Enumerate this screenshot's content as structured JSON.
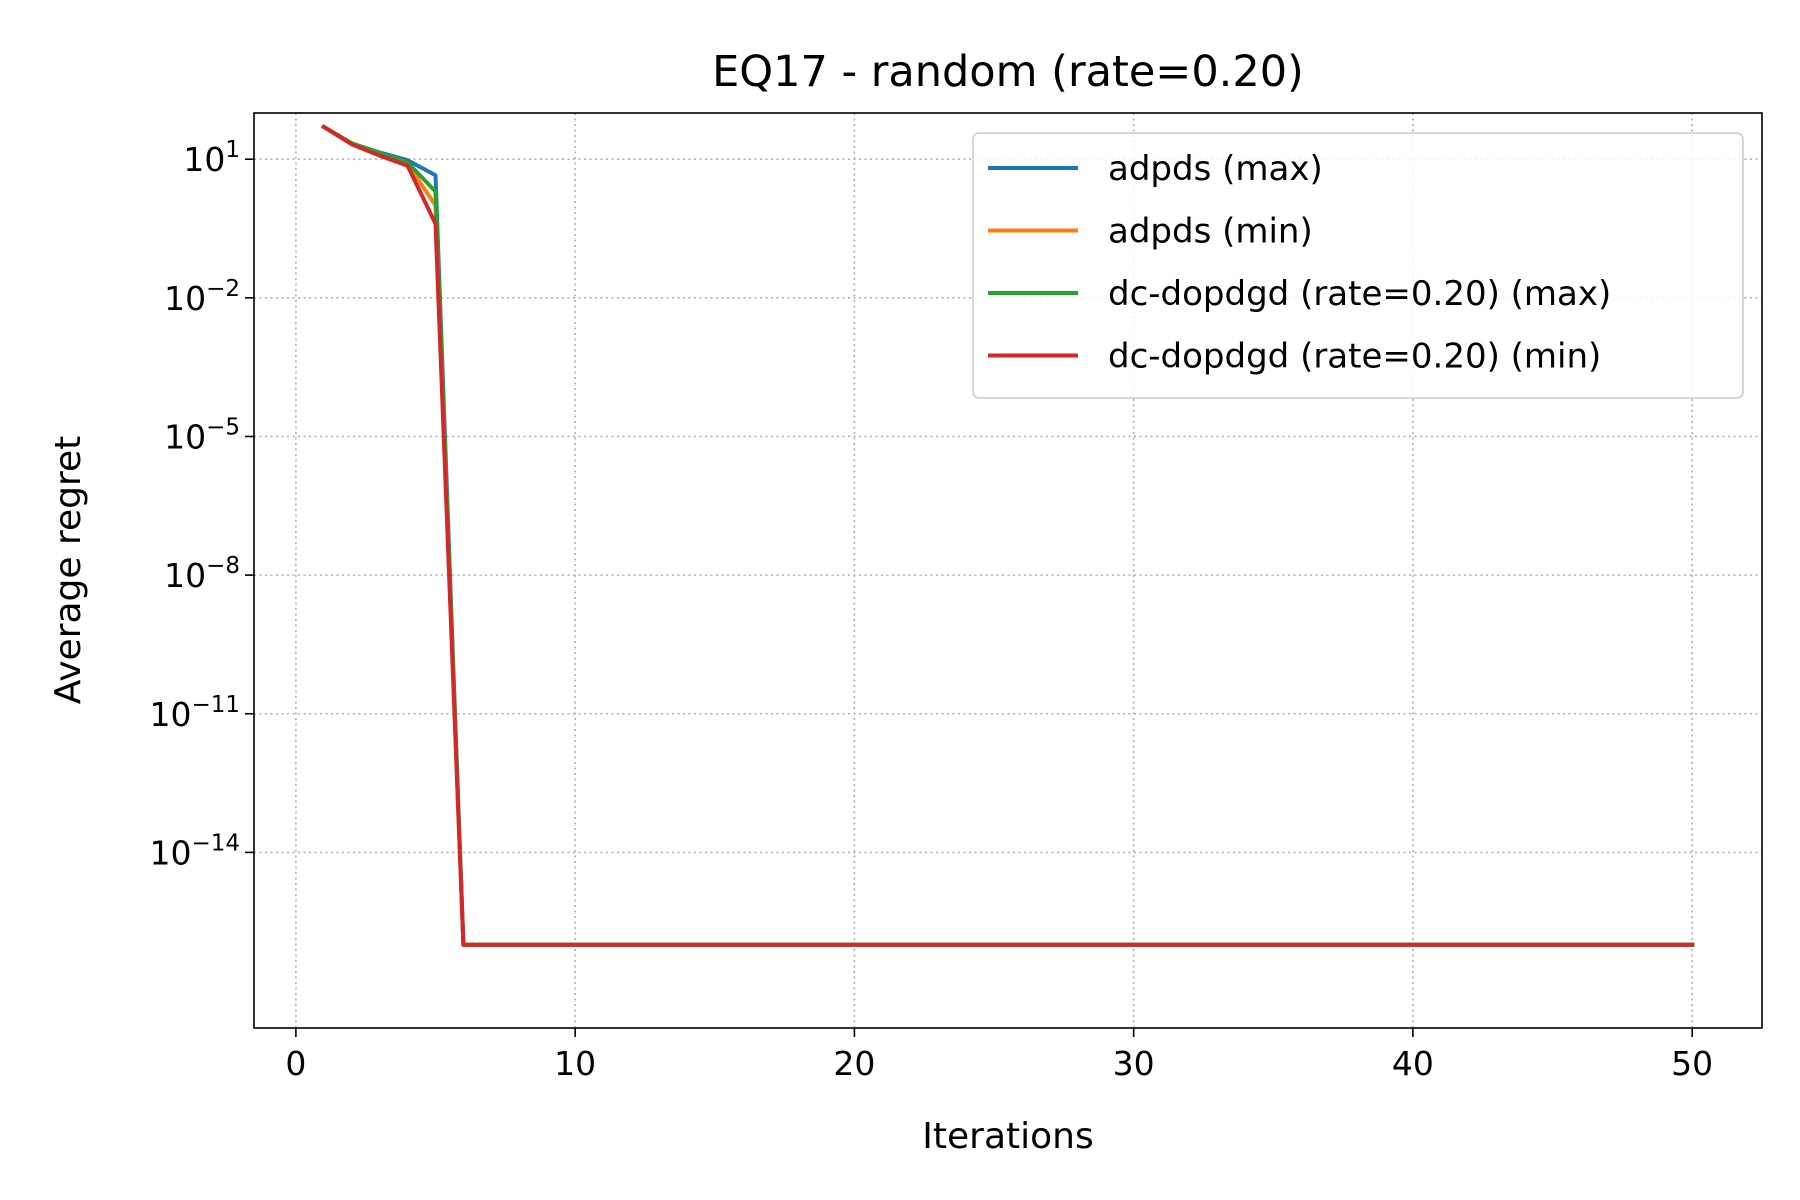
{
  "chart_data": {
    "type": "line",
    "title": "EQ17 - random (rate=0.20)",
    "xlabel": "Iterations",
    "ylabel": "Average regret",
    "yscale": "log",
    "xlim": [
      -1.5,
      52.5
    ],
    "ylim_log10": [
      -17.8,
      2.0
    ],
    "x_ticks": [
      0,
      10,
      20,
      30,
      40,
      50
    ],
    "y_ticks": [
      {
        "base": "10",
        "exp": "1",
        "log10": 1
      },
      {
        "base": "10",
        "exp": "−2",
        "log10": -2
      },
      {
        "base": "10",
        "exp": "−5",
        "log10": -5
      },
      {
        "base": "10",
        "exp": "−8",
        "log10": -8
      },
      {
        "base": "10",
        "exp": "−11",
        "log10": -11
      },
      {
        "base": "10",
        "exp": "−14",
        "log10": -14
      }
    ],
    "grid": true,
    "legend_position": "upper right",
    "series": [
      {
        "name": "adpds (max)",
        "color": "#1f77b4",
        "points": [
          [
            1,
            50
          ],
          [
            2,
            22
          ],
          [
            3,
            14
          ],
          [
            4,
            9.5
          ],
          [
            5,
            4.5
          ],
          [
            6,
            1e-16
          ],
          [
            50,
            1e-16
          ]
        ]
      },
      {
        "name": "adpds (min)",
        "color": "#ff7f0e",
        "points": [
          [
            1,
            50
          ],
          [
            2,
            22
          ],
          [
            3,
            13
          ],
          [
            4,
            8
          ],
          [
            5,
            1.0
          ],
          [
            6,
            1e-16
          ],
          [
            50,
            1e-16
          ]
        ]
      },
      {
        "name": "dc-dopdgd (rate=0.20) (max)",
        "color": "#2ca02c",
        "points": [
          [
            1,
            50
          ],
          [
            2,
            22
          ],
          [
            3,
            13.5
          ],
          [
            4,
            8.5
          ],
          [
            5,
            2.0
          ],
          [
            6,
            1e-16
          ],
          [
            50,
            1e-16
          ]
        ]
      },
      {
        "name": "dc-dopdgd (rate=0.20) (min)",
        "color": "#d62728",
        "points": [
          [
            1,
            50
          ],
          [
            2,
            21
          ],
          [
            3,
            12
          ],
          [
            4,
            7.2
          ],
          [
            5,
            0.4
          ],
          [
            6,
            1e-16
          ],
          [
            50,
            1e-16
          ]
        ]
      }
    ]
  }
}
